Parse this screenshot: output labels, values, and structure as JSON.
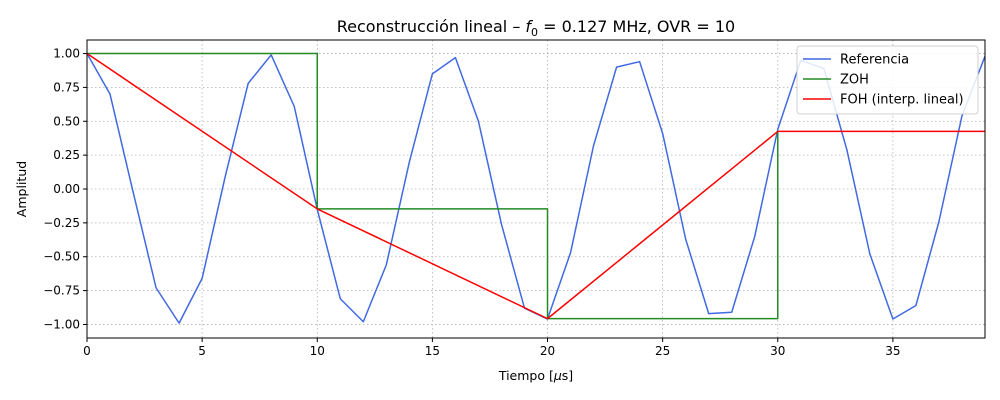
{
  "chart_data": {
    "type": "line",
    "title_main": "Reconstrucción lineal – ",
    "title_symbol": "f",
    "title_sub": "0",
    "title_rest": " = 0.127 MHz,  OVR = 10",
    "xlabel_main": "Tiempo [",
    "xlabel_mu": "μ",
    "xlabel_rest": "s]",
    "ylabel": "Amplitud",
    "xlim": [
      0,
      39
    ],
    "ylim": [
      -1.1,
      1.1
    ],
    "xticks": [
      0,
      5,
      10,
      15,
      20,
      25,
      30,
      35
    ],
    "xtick_labels": [
      "0",
      "5",
      "10",
      "15",
      "20",
      "25",
      "30",
      "35"
    ],
    "yticks": [
      -1.0,
      -0.75,
      -0.5,
      -0.25,
      0.0,
      0.25,
      0.5,
      0.75,
      1.0
    ],
    "ytick_labels": [
      "−1.00",
      "−0.75",
      "−0.50",
      "−0.25",
      "0.00",
      "0.25",
      "0.50",
      "0.75",
      "1.00"
    ],
    "grid": true,
    "legend_position": "upper right",
    "series": [
      {
        "name": "Referencia",
        "color": "#4169e1",
        "x": [
          0,
          1,
          2,
          3,
          4,
          5,
          6,
          7,
          8,
          9,
          10,
          11,
          12,
          13,
          14,
          15,
          16,
          17,
          18,
          19,
          20,
          21,
          22,
          23,
          24,
          25,
          26,
          27,
          28,
          29,
          30,
          31,
          32,
          33,
          34,
          35,
          36,
          37,
          38,
          39
        ],
        "y": [
          1.0,
          0.7,
          -0.02,
          -0.73,
          -0.99,
          -0.66,
          0.09,
          0.78,
          0.99,
          0.61,
          -0.15,
          -0.81,
          -0.98,
          -0.56,
          0.2,
          0.85,
          0.97,
          0.5,
          -0.26,
          -0.88,
          -0.96,
          -0.47,
          0.32,
          0.9,
          0.94,
          0.41,
          -0.37,
          -0.92,
          -0.91,
          -0.35,
          0.44,
          0.95,
          0.89,
          0.29,
          -0.48,
          -0.96,
          -0.86,
          -0.24,
          0.54,
          0.98
        ]
      },
      {
        "name": "ZOH",
        "color": "#228b22",
        "x": [
          0,
          10,
          10,
          20,
          20,
          30,
          30
        ],
        "y": [
          1.0,
          1.0,
          -0.147,
          -0.147,
          -0.957,
          -0.957,
          0.425
        ]
      },
      {
        "name": "FOH (interp. lineal)",
        "color": "#ff0000",
        "x": [
          0,
          10,
          20,
          30,
          39
        ],
        "y": [
          1.0,
          -0.147,
          -0.957,
          0.425,
          0.425
        ]
      }
    ]
  }
}
